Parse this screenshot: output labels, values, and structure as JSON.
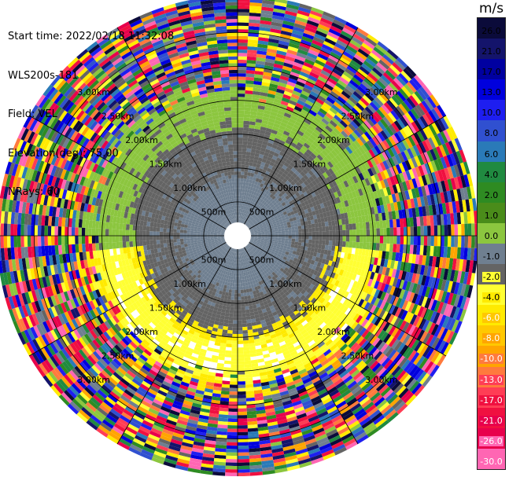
{
  "info": {
    "start_time": "Start time: 2022/02/18 11:32:08",
    "instrument": "WLS200s-181",
    "field": "Field: VEL",
    "elevation": "Elevation(deg): 75.00",
    "nrays": "NRays: 60"
  },
  "chart_data": {
    "type": "ppi",
    "field": "VEL",
    "unit": "m/s",
    "elevation_deg": 75.0,
    "n_rays": 60,
    "ring_labels": [
      "500m",
      "1.00km",
      "1.50km",
      "2.00km",
      "2.50km",
      "3.00km"
    ],
    "ring_ranges_km": [
      0.5,
      1.0,
      1.5,
      2.0,
      2.5,
      3.0
    ],
    "max_range_km": 3.55,
    "spoke_angles_deg": [
      0,
      30,
      60,
      90,
      120,
      150,
      180,
      210,
      240,
      270,
      300,
      330
    ],
    "colorbar": {
      "colors": [
        "#0b0b3a",
        "#14146b",
        "#0000a0",
        "#0000dd",
        "#1e1ef0",
        "#3050d0",
        "#2a7ab8",
        "#208a40",
        "#2e8b22",
        "#4a8c1a",
        "#8cc63f",
        "#6f7f90",
        "#646464",
        "#ffff33",
        "#ffea00",
        "#ffc800",
        "#ffa500",
        "#ff7a3d",
        "#ff3d55",
        "#f01040",
        "#e8004c",
        "#ff66b3"
      ],
      "labels": [
        "26.0",
        "21.0",
        "17.0",
        "13.0",
        "10.0",
        "8.0",
        "6.0",
        "4.0",
        "2.0",
        "1.0",
        "0.0",
        "-1.0",
        "-2.0",
        "-4.0",
        "-6.0",
        "-8.0",
        "-10.0",
        "-13.0",
        "-17.0",
        "-21.0",
        "-26.0",
        "-30.0"
      ]
    },
    "range_bands": [
      {
        "from_km": 0.0,
        "to_km": 1.55,
        "dominant": [
          "#6f7f90",
          "#646464"
        ]
      },
      {
        "from_km": 1.55,
        "to_km": 2.15,
        "dominant": [
          "#8cc63f",
          "#646464",
          "#ffea00"
        ]
      },
      {
        "from_km": 2.15,
        "to_km": 3.55,
        "dominant": [
          "noisy mix of all colours"
        ]
      }
    ]
  }
}
